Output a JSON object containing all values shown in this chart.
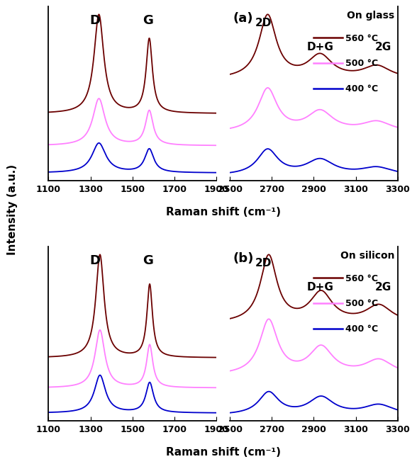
{
  "colors": {
    "c560": "#6B0000",
    "c500": "#FF80FF",
    "c400": "#0000CC"
  },
  "panel_a_title": "On glass",
  "panel_b_title": "On silicon",
  "panel_a_label": "(a)",
  "panel_b_label": "(b)",
  "legend_entries": [
    "560 °C",
    "500 °C",
    "400 °C"
  ],
  "xlabel": "Raman shift (cm⁻¹)",
  "ylabel": "Intensity (a.u.)",
  "left_xlim": [
    1100,
    1900
  ],
  "right_xlim": [
    2500,
    3300
  ],
  "left_xticks": [
    1100,
    1300,
    1500,
    1700,
    1900
  ],
  "right_xticks": [
    2500,
    2700,
    2900,
    3100,
    3300
  ]
}
